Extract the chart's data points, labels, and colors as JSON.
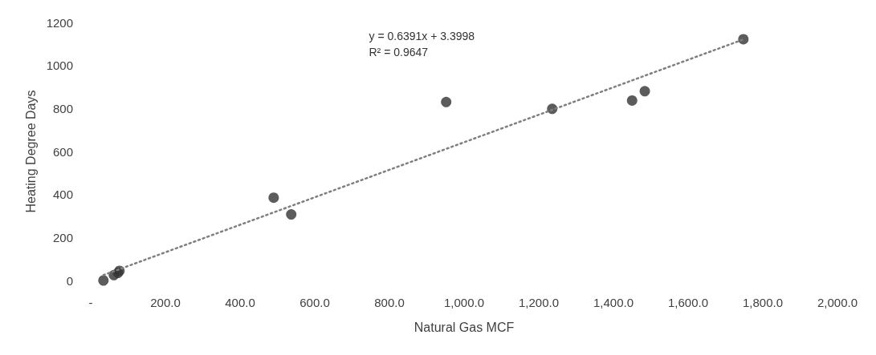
{
  "chart_data": {
    "type": "scatter",
    "xlabel": "Natural Gas MCF",
    "ylabel": "Heating Degree Days",
    "xlim": [
      0,
      2000
    ],
    "xticks": [
      {
        "value": 0,
        "label": "-"
      },
      {
        "value": 200,
        "label": "200.0"
      },
      {
        "value": 400,
        "label": "400.0"
      },
      {
        "value": 600,
        "label": "600.0"
      },
      {
        "value": 800,
        "label": "800.0"
      },
      {
        "value": 1000,
        "label": "1,000.0"
      },
      {
        "value": 1200,
        "label": "1,200.0"
      },
      {
        "value": 1400,
        "label": "1,400.0"
      },
      {
        "value": 1600,
        "label": "1,600.0"
      },
      {
        "value": 1800,
        "label": "1,800.0"
      },
      {
        "value": 2000,
        "label": "2,000.0"
      }
    ],
    "ylim": [
      0,
      1200
    ],
    "yticks": [
      0,
      200,
      400,
      600,
      800,
      1000,
      1200
    ],
    "grid": false,
    "marker": "circle",
    "series": [
      {
        "color": "#333333",
        "x": [
          34,
          62,
          73,
          77,
          490,
          537,
          952,
          1236,
          1450,
          1484,
          1748
        ],
        "values": [
          0,
          25,
          35,
          45,
          385,
          307,
          830,
          798,
          837,
          880,
          1122
        ]
      },
      {
        "type": "line",
        "color": "#7f7f7f",
        "line_style": "dotted",
        "marker": "none",
        "x": [
          34,
          1748
        ],
        "values": [
          25,
          1121
        ]
      }
    ],
    "annotations": [
      "y = 0.6391x + 3.3998",
      "R² = 0.9647"
    ]
  }
}
